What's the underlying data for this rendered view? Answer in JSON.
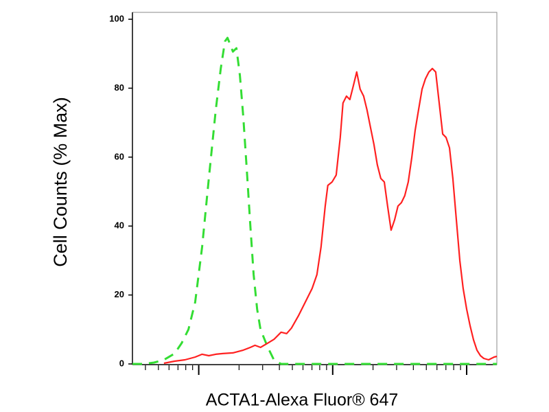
{
  "chart_data": {
    "type": "line",
    "xlabel": "ACTA1-Alexa Fluor® 647",
    "ylabel": "Cell Counts (% Max)",
    "xscale": "log",
    "xlim": [
      32,
      16800
    ],
    "xticks": [
      40,
      50,
      60,
      70,
      80,
      90,
      100,
      200,
      300,
      400,
      500,
      600,
      700,
      800,
      900,
      1000,
      2000,
      3000,
      4000,
      5000,
      6000,
      7000,
      8000,
      9000,
      10000
    ],
    "ylim": [
      0,
      102
    ],
    "yticks": [
      0,
      20,
      40,
      60,
      80,
      100
    ],
    "series": [
      {
        "color": "#33dd33",
        "linestyle": "dashed",
        "x": [
          32,
          38.9,
          46.4,
          55,
          66,
          74.5,
          83.8,
          94,
          106,
          119,
          134,
          146,
          157,
          164,
          172,
          180,
          191,
          203,
          215,
          229,
          243,
          257,
          273,
          289,
          326,
          366,
          412,
          16800
        ],
        "values": [
          0,
          0,
          0.4,
          1.2,
          3.0,
          6.0,
          10.0,
          17.9,
          33.9,
          53.8,
          73.7,
          85.7,
          93.6,
          94.6,
          92.6,
          90.6,
          91.6,
          83.7,
          71.7,
          55.8,
          39.8,
          25.9,
          15.9,
          10.0,
          5.0,
          1.0,
          0,
          0
        ]
      },
      {
        "color": "#ff2020",
        "linestyle": "solid",
        "x": [
          55,
          66,
          79,
          94,
          106,
          119,
          134,
          151,
          180,
          215,
          243,
          263,
          289,
          326,
          366,
          412,
          453,
          492,
          554,
          624,
          702,
          762,
          818,
          879,
          920,
          989,
          1062,
          1138,
          1194,
          1268,
          1343,
          1426,
          1511,
          1603,
          1702,
          1803,
          1914,
          2032,
          2153,
          2286,
          2427,
          2570,
          2729,
          2897,
          3069,
          3258,
          3451,
          3664,
          3890,
          4121,
          4375,
          4645,
          4920,
          5224,
          5546,
          5875,
          6237,
          6622,
          7015,
          7447,
          7889,
          8375,
          8892,
          9419,
          10000,
          10617,
          11246,
          11940,
          12677,
          13427,
          14588,
          16032,
          16800
        ],
        "values": [
          0.2,
          0.8,
          1.2,
          2.0,
          2.8,
          2.4,
          2.8,
          3.0,
          3.2,
          4.0,
          4.8,
          5.4,
          4.8,
          6.0,
          7.2,
          9.2,
          8.8,
          10.4,
          13.9,
          17.9,
          21.9,
          25.9,
          33.9,
          45.8,
          51.8,
          52.8,
          54.8,
          65.7,
          75.7,
          77.7,
          76.7,
          80.7,
          84.7,
          79.7,
          77.7,
          73.7,
          68.7,
          63.7,
          57.8,
          53.8,
          52.8,
          45.8,
          38.8,
          41.8,
          45.8,
          46.8,
          48.8,
          52.8,
          59.8,
          67.7,
          73.7,
          79.7,
          82.7,
          84.7,
          85.7,
          84.7,
          75.7,
          66.7,
          65.7,
          62.7,
          53.8,
          41.8,
          29.9,
          21.9,
          15.9,
          11.0,
          7.0,
          4.0,
          2.4,
          1.6,
          1.2,
          2.0,
          2.2
        ]
      }
    ]
  }
}
